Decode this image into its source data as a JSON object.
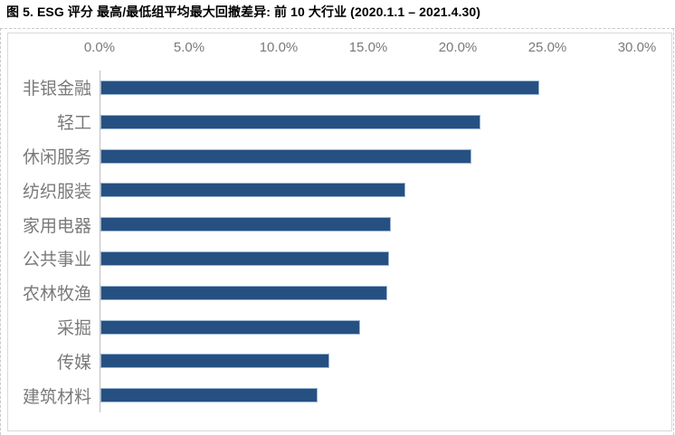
{
  "chart_data": {
    "type": "bar",
    "orientation": "horizontal",
    "title": "图 5. ESG 评分 最高/最低组平均最大回撤差异: 前 10 大行业 (2020.1.1 – 2021.4.30)",
    "categories": [
      "非银金融",
      "轻工",
      "休闲服务",
      "纺织服装",
      "家用电器",
      "公共事业",
      "农林牧渔",
      "采掘",
      "传媒",
      "建筑材料"
    ],
    "values": [
      24.5,
      21.2,
      20.7,
      17.0,
      16.2,
      16.1,
      16.0,
      14.5,
      12.8,
      12.1
    ],
    "value_unit": "%",
    "x_ticks": [
      "0.0%",
      "5.0%",
      "10.0%",
      "15.0%",
      "20.0%",
      "25.0%",
      "30.0%"
    ],
    "xlim": [
      0,
      30
    ],
    "x_axis_position": "top",
    "grid": false,
    "legend": false,
    "data_labels": false,
    "colors": {
      "bar_fill": "#255081",
      "bar_edge": "#9cb6d5",
      "axis_line": "#bfbfbf",
      "tick_text": "#7a7a7a",
      "category_text": "#7a7a7a",
      "chart_border": "#d9d9d9",
      "cell_border": "#c9c9c9"
    }
  }
}
